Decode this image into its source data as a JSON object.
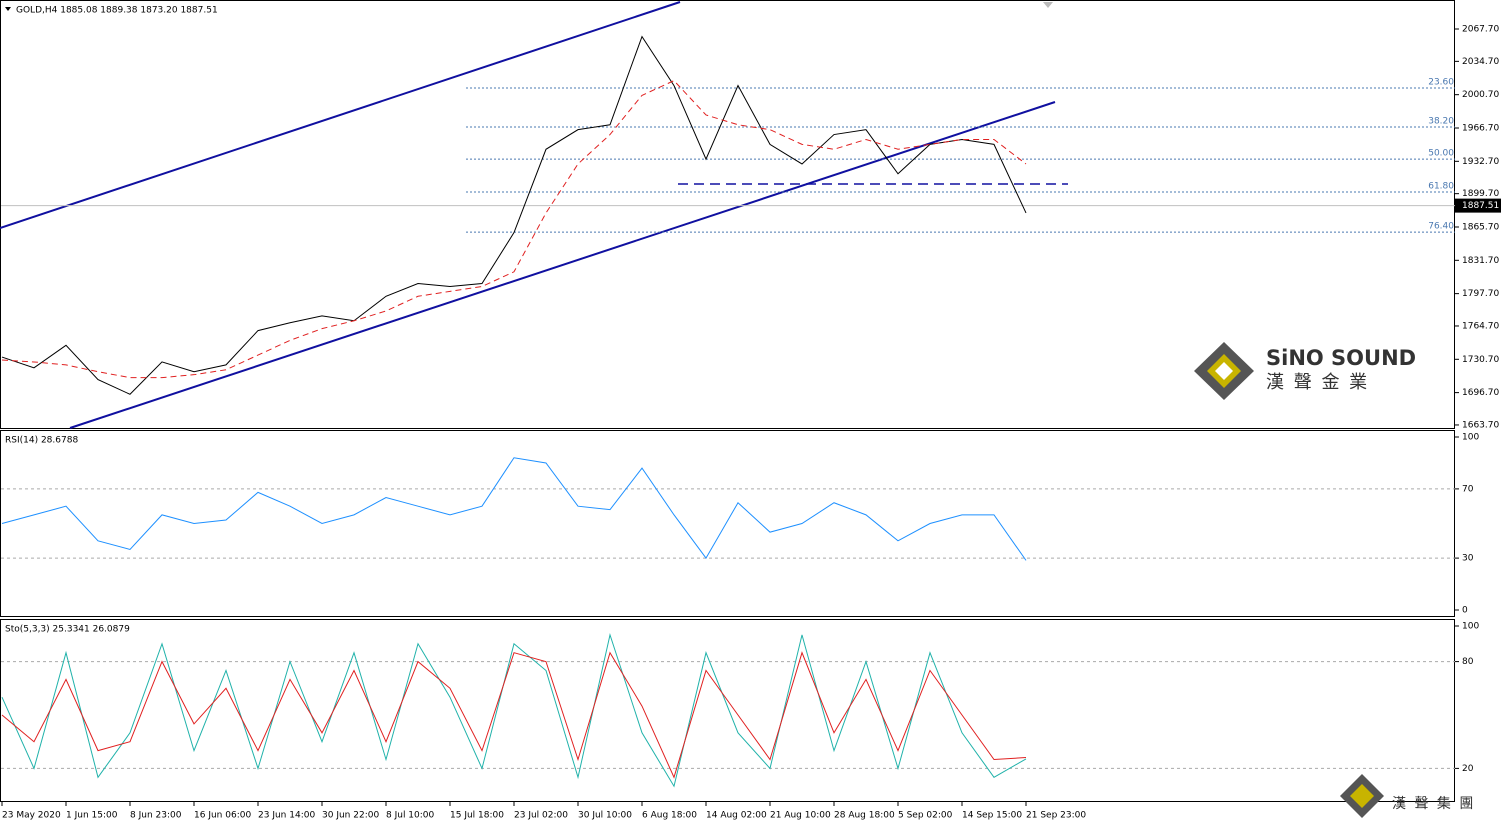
{
  "chart_data": [
    {
      "type": "line",
      "title": "GOLD,H4  1885.08 1889.38 1873.20 1887.51",
      "ylim": [
        1660.6,
        2097.3
      ],
      "yticks": [
        {
          "value": 2067.7,
          "label": "2067.70"
        },
        {
          "value": 2034.7,
          "label": "2034.70"
        },
        {
          "value": 2000.7,
          "label": "2000.70"
        },
        {
          "value": 1966.7,
          "label": "1966.70"
        },
        {
          "value": 1932.7,
          "label": "1932.70"
        },
        {
          "value": 1899.7,
          "label": "1899.70"
        },
        {
          "value": 1865.7,
          "label": "1865.70"
        },
        {
          "value": 1831.7,
          "label": "1831.70"
        },
        {
          "value": 1797.7,
          "label": "1797.70"
        },
        {
          "value": 1764.7,
          "label": "1764.70"
        },
        {
          "value": 1730.7,
          "label": "1730.70"
        },
        {
          "value": 1696.7,
          "label": "1696.70"
        },
        {
          "value": 1663.7,
          "label": "1663.70"
        }
      ],
      "last_price": {
        "value": 1887.51,
        "label": "1887.51"
      },
      "fib_levels": [
        {
          "value": 2007.5,
          "label": "23.60"
        },
        {
          "value": 1967.7,
          "label": "38.20"
        },
        {
          "value": 1935.0,
          "label": "50.00"
        },
        {
          "value": 1901.4,
          "label": "61.80"
        },
        {
          "value": 1860.5,
          "label": "76.40"
        }
      ],
      "series": [
        {
          "color": "#000000",
          "values": [
            1733,
            1722,
            1745,
            1710,
            1695,
            1728,
            1718,
            1725,
            1760,
            1768,
            1775,
            1770,
            1795,
            1808,
            1805,
            1808,
            1860,
            1945,
            1965,
            1970,
            2060,
            2010,
            1935,
            2010,
            1950,
            1930,
            1960,
            1965,
            1920,
            1950,
            1955,
            1950,
            1880
          ]
        },
        {
          "color": "#e02020",
          "dashed": true,
          "values": [
            1730,
            1728,
            1725,
            1718,
            1712,
            1712,
            1715,
            1720,
            1735,
            1750,
            1762,
            1770,
            1780,
            1795,
            1800,
            1805,
            1820,
            1880,
            1930,
            1960,
            2000,
            2015,
            1980,
            1970,
            1965,
            1950,
            1945,
            1955,
            1945,
            1950,
            1955,
            1955,
            1930
          ]
        }
      ],
      "logo": {
        "brand": "SiNO SOUND",
        "subtitle": "漢 聲 金 業"
      }
    },
    {
      "type": "line",
      "title": "RSI(14) 28.6788",
      "ylim": [
        0,
        100
      ],
      "yticks": [
        100,
        70,
        30,
        0
      ],
      "levels": [
        70,
        30
      ],
      "series": [
        {
          "color": "#1e90ff",
          "values": [
            50,
            55,
            60,
            40,
            35,
            55,
            50,
            52,
            68,
            60,
            50,
            55,
            65,
            60,
            55,
            60,
            88,
            85,
            60,
            58,
            82,
            55,
            30,
            62,
            45,
            50,
            62,
            55,
            40,
            50,
            55,
            55,
            28.68
          ]
        }
      ]
    },
    {
      "type": "line",
      "title": "Sto(5,3,3) 25.3341 26.0879",
      "ylim": [
        0,
        100
      ],
      "yticks": [
        100,
        80,
        20
      ],
      "levels": [
        80,
        20
      ],
      "categories": [
        "23 May 2020",
        null,
        "1 Jun 15:00",
        null,
        "8 Jun 23:00",
        null,
        "16 Jun 06:00",
        null,
        "23 Jun 14:00",
        null,
        "30 Jun 22:00",
        null,
        "8 Jul 10:00",
        null,
        "15 Jul 18:00",
        null,
        "23 Jul 02:00",
        null,
        "30 Jul 10:00",
        null,
        "6 Aug 18:00",
        null,
        "14 Aug 02:00",
        null,
        "21 Aug 10:00",
        null,
        "28 Aug 18:00",
        null,
        "5 Sep 02:00",
        null,
        "14 Sep 15:00",
        null,
        "21 Sep 23:00"
      ],
      "series": [
        {
          "color": "#20b2aa",
          "values": [
            60,
            20,
            85,
            15,
            40,
            90,
            30,
            75,
            20,
            80,
            35,
            85,
            25,
            90,
            60,
            20,
            90,
            75,
            15,
            95,
            40,
            10,
            85,
            40,
            20,
            95,
            30,
            80,
            20,
            85,
            40,
            15,
            25.33
          ]
        },
        {
          "color": "#e02020",
          "values": [
            50,
            35,
            70,
            30,
            35,
            80,
            45,
            65,
            30,
            70,
            40,
            75,
            35,
            80,
            65,
            30,
            85,
            80,
            25,
            85,
            55,
            15,
            75,
            50,
            25,
            85,
            40,
            70,
            30,
            75,
            50,
            25,
            26.09
          ]
        }
      ],
      "footer_logo": "漢 聲 集 團"
    }
  ]
}
